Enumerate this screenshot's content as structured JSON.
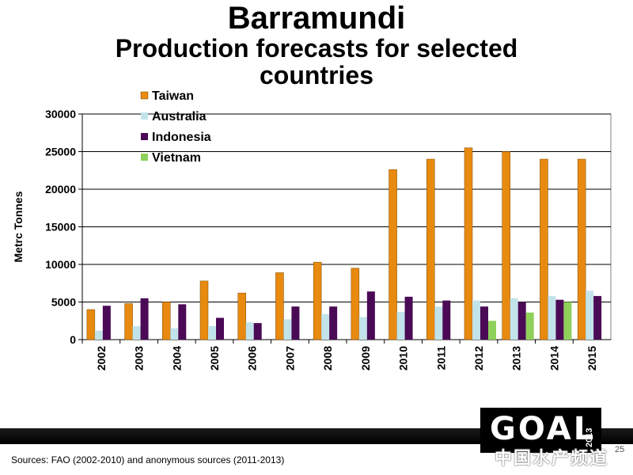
{
  "slide": {
    "title": "Barramundi",
    "subtitle": "Production forecasts for selected countries",
    "sources": "Sources:  FAO (2002-2010) and anonymous sources (2011-2013)",
    "logo_text": "GOAL",
    "logo_year": "2013",
    "watermark": "中国水产频道",
    "slide_number": "25"
  },
  "colors": {
    "Taiwan": "#e88a10",
    "Australia": "#c3e3ea",
    "Indonesia": "#4a0a55",
    "Vietnam": "#8fd05a"
  },
  "chart_data": {
    "type": "bar",
    "title": "",
    "xlabel": "",
    "ylabel": "Metrc Tonnes",
    "ylim": [
      0,
      30000
    ],
    "yticks": [
      0,
      5000,
      10000,
      15000,
      20000,
      25000,
      30000
    ],
    "categories": [
      "2002",
      "2003",
      "2004",
      "2005",
      "2006",
      "2007",
      "2008",
      "2009",
      "2010",
      "2011",
      "2012",
      "2013",
      "2014",
      "2015"
    ],
    "legend_position": "top-left",
    "series": [
      {
        "name": "Taiwan",
        "values": [
          4000,
          4800,
          5000,
          7800,
          6200,
          8900,
          10300,
          9500,
          22600,
          24000,
          25500,
          25000,
          24000,
          24000
        ]
      },
      {
        "name": "Australia",
        "values": [
          1200,
          1800,
          1500,
          1800,
          2300,
          2700,
          3400,
          3000,
          3700,
          4400,
          5200,
          5500,
          5800,
          6500
        ]
      },
      {
        "name": "Indonesia",
        "values": [
          4500,
          5500,
          4700,
          2900,
          2200,
          4400,
          4400,
          6400,
          5700,
          5200,
          4400,
          5000,
          5300,
          5800
        ]
      },
      {
        "name": "Vietnam",
        "values": [
          0,
          0,
          0,
          0,
          0,
          0,
          0,
          0,
          0,
          0,
          2500,
          3600,
          5000,
          0
        ]
      }
    ]
  }
}
